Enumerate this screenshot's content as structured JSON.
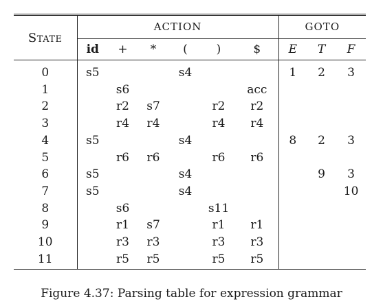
{
  "table": {
    "state_header": "State",
    "action_header": "ACTION",
    "goto_header": "GOTO",
    "action_columns": [
      "id",
      "+",
      "*",
      "(",
      ")",
      "$"
    ],
    "goto_columns": [
      "E",
      "T",
      "F"
    ],
    "rows": [
      {
        "state": "0",
        "action": [
          "s5",
          "",
          "",
          "s4",
          "",
          ""
        ],
        "goto": [
          "1",
          "2",
          "3"
        ]
      },
      {
        "state": "1",
        "action": [
          "",
          "s6",
          "",
          "",
          "",
          "acc"
        ],
        "goto": [
          "",
          "",
          ""
        ]
      },
      {
        "state": "2",
        "action": [
          "",
          "r2",
          "s7",
          "",
          "r2",
          "r2"
        ],
        "goto": [
          "",
          "",
          ""
        ]
      },
      {
        "state": "3",
        "action": [
          "",
          "r4",
          "r4",
          "",
          "r4",
          "r4"
        ],
        "goto": [
          "",
          "",
          ""
        ]
      },
      {
        "state": "4",
        "action": [
          "s5",
          "",
          "",
          "s4",
          "",
          ""
        ],
        "goto": [
          "8",
          "2",
          "3"
        ]
      },
      {
        "state": "5",
        "action": [
          "",
          "r6",
          "r6",
          "",
          "r6",
          "r6"
        ],
        "goto": [
          "",
          "",
          ""
        ]
      },
      {
        "state": "6",
        "action": [
          "s5",
          "",
          "",
          "s4",
          "",
          ""
        ],
        "goto": [
          "",
          "9",
          "3"
        ]
      },
      {
        "state": "7",
        "action": [
          "s5",
          "",
          "",
          "s4",
          "",
          ""
        ],
        "goto": [
          "",
          "",
          "10"
        ]
      },
      {
        "state": "8",
        "action": [
          "",
          "s6",
          "",
          "",
          "s11",
          ""
        ],
        "goto": [
          "",
          "",
          ""
        ]
      },
      {
        "state": "9",
        "action": [
          "",
          "r1",
          "s7",
          "",
          "r1",
          "r1"
        ],
        "goto": [
          "",
          "",
          ""
        ]
      },
      {
        "state": "10",
        "action": [
          "",
          "r3",
          "r3",
          "",
          "r3",
          "r3"
        ],
        "goto": [
          "",
          "",
          ""
        ]
      },
      {
        "state": "11",
        "action": [
          "",
          "r5",
          "r5",
          "",
          "r5",
          "r5"
        ],
        "goto": [
          "",
          "",
          ""
        ]
      }
    ]
  },
  "caption": "Figure 4.37: Parsing table for expression grammar"
}
